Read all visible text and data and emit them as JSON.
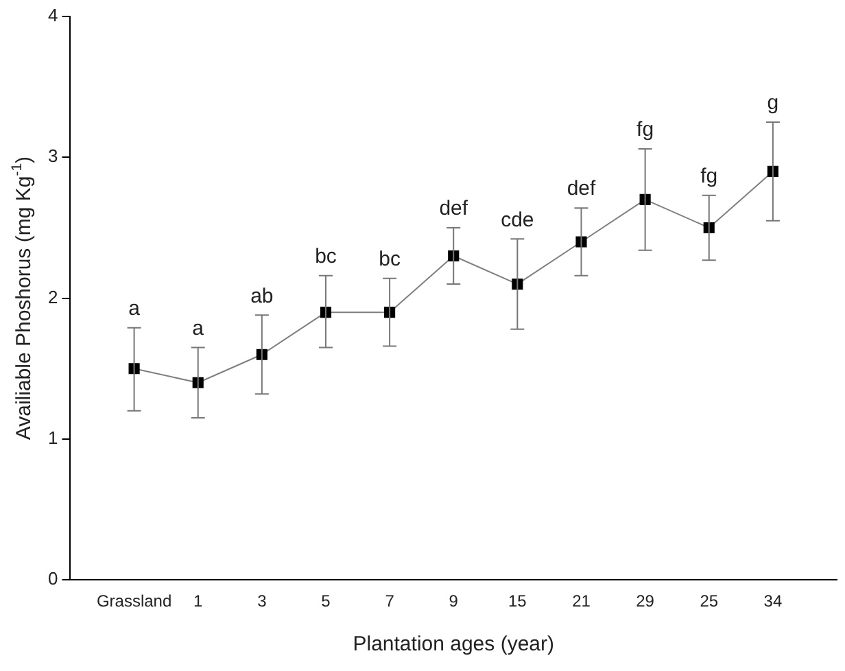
{
  "chart_data": {
    "type": "line",
    "xlabel": "Plantation ages (year)",
    "ylabel": "Availiable Phoshorus (mg Kg$^{-1}$)",
    "categories": [
      "Grassland",
      "1",
      "3",
      "5",
      "7",
      "9",
      "15",
      "21",
      "29",
      "25",
      "34"
    ],
    "series": [
      {
        "color": "#000000",
        "values": [
          1.5,
          1.4,
          1.6,
          1.9,
          1.9,
          2.3,
          2.1,
          2.4,
          2.7,
          2.5,
          2.9
        ],
        "errors": [
          [
            1.2,
            1.79
          ],
          [
            1.15,
            1.65
          ],
          [
            1.32,
            1.88
          ],
          [
            1.65,
            2.16
          ],
          [
            1.66,
            2.14
          ],
          [
            2.1,
            2.5
          ],
          [
            1.78,
            2.42
          ],
          [
            2.16,
            2.64
          ],
          [
            2.34,
            3.06
          ],
          [
            2.27,
            2.73
          ],
          [
            2.55,
            3.25
          ]
        ]
      }
    ],
    "ylim": [
      0,
      4
    ],
    "yticks": [
      0,
      1,
      2,
      3,
      4
    ],
    "grid": false,
    "legend": false,
    "marker": "square",
    "line_style": "solid",
    "annotations": [
      {
        "text": "a",
        "x": "Grassland",
        "y": 1.79
      },
      {
        "text": "a",
        "x": "1",
        "y": 1.65
      },
      {
        "text": "ab",
        "x": "3",
        "y": 1.88
      },
      {
        "text": "bc",
        "x": "5",
        "y": 2.16
      },
      {
        "text": "bc",
        "x": "7",
        "y": 2.14
      },
      {
        "text": "def",
        "x": "9",
        "y": 2.5
      },
      {
        "text": "cde",
        "x": "15",
        "y": 2.42
      },
      {
        "text": "def",
        "x": "21",
        "y": 2.64
      },
      {
        "text": "fg",
        "x": "29",
        "y": 3.06
      },
      {
        "text": "fg",
        "x": "25",
        "y": 2.73
      },
      {
        "text": "g",
        "x": "34",
        "y": 3.25
      }
    ]
  }
}
